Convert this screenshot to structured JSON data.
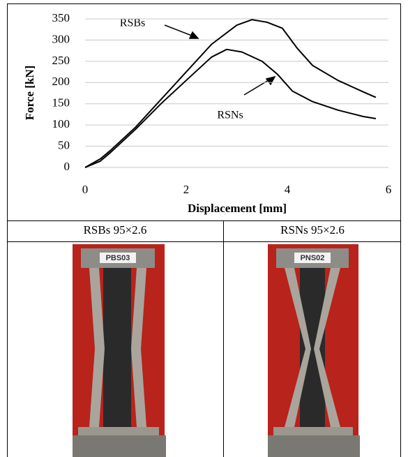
{
  "chart_data": {
    "type": "line",
    "xlabel": "Displacement [mm]",
    "ylabel": "Force [kN]",
    "xlim": [
      0,
      6
    ],
    "xticks": [
      0,
      2,
      4,
      6
    ],
    "ylim": [
      0,
      350
    ],
    "yticks": [
      0,
      50,
      100,
      150,
      200,
      250,
      300,
      350
    ],
    "grid": true,
    "series": [
      {
        "name": "RSBs",
        "color": "#000000",
        "x": [
          0,
          0.3,
          0.5,
          1,
          1.5,
          2,
          2.5,
          3,
          3.3,
          3.6,
          3.9,
          4.2,
          4.5,
          5,
          5.5,
          5.75
        ],
        "values": [
          0,
          20,
          40,
          95,
          160,
          225,
          290,
          335,
          348,
          342,
          328,
          280,
          240,
          205,
          178,
          165
        ]
      },
      {
        "name": "RSNs",
        "color": "#000000",
        "x": [
          0,
          0.3,
          0.5,
          1,
          1.5,
          2,
          2.5,
          2.8,
          3.1,
          3.5,
          3.8,
          4.1,
          4.5,
          5,
          5.5,
          5.75
        ],
        "values": [
          0,
          15,
          35,
          90,
          150,
          205,
          260,
          278,
          272,
          250,
          220,
          180,
          155,
          135,
          120,
          115
        ]
      }
    ]
  },
  "table": {
    "captions": [
      "RSBs 95×2.6",
      "RSNs 95×2.6"
    ],
    "photo_labels": [
      "PBS03",
      "PNS02"
    ]
  }
}
